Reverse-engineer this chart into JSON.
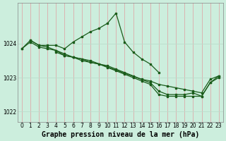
{
  "title": "Graphe pression niveau de la mer (hPa)",
  "background_color": "#cceedd",
  "line_color": "#1a5c1a",
  "marker_color": "#1a5c1a",
  "xlim": [
    -0.5,
    23.5
  ],
  "ylim": [
    1021.7,
    1025.2
  ],
  "yticks": [
    1022,
    1023,
    1024
  ],
  "xticks": [
    0,
    1,
    2,
    3,
    4,
    5,
    6,
    7,
    8,
    9,
    10,
    11,
    12,
    13,
    14,
    15,
    16,
    17,
    18,
    19,
    20,
    21,
    22,
    23
  ],
  "series": [
    {
      "x": [
        0,
        1,
        2,
        3,
        4,
        5,
        6,
        7,
        8,
        9,
        10,
        11,
        12,
        13,
        14,
        15,
        16
      ],
      "y": [
        1023.85,
        1024.1,
        1023.95,
        1023.95,
        1023.95,
        1023.85,
        1024.05,
        1024.2,
        1024.35,
        1024.45,
        1024.6,
        1024.9,
        1024.05,
        1023.75,
        1023.55,
        1023.4,
        1023.15
      ]
    },
    {
      "x": [
        1,
        2,
        3,
        4,
        5,
        6,
        7,
        8,
        9,
        10,
        11,
        12,
        13,
        14,
        15,
        16,
        17,
        18,
        19,
        20,
        21,
        22,
        23
      ],
      "y": [
        1024.1,
        1023.95,
        1023.9,
        1023.8,
        1023.7,
        1023.6,
        1023.55,
        1023.45,
        1023.4,
        1023.35,
        1023.25,
        1023.15,
        1023.05,
        1022.95,
        1022.9,
        1022.8,
        1022.75,
        1022.7,
        1022.65,
        1022.6,
        1022.55,
        1022.95,
        1023.05
      ]
    },
    {
      "x": [
        0,
        1,
        2,
        3,
        4,
        5,
        6,
        7,
        8,
        15,
        16,
        17,
        18,
        19,
        20,
        21,
        22,
        23
      ],
      "y": [
        1023.85,
        1024.05,
        1023.9,
        1023.85,
        1023.8,
        1023.65,
        1023.6,
        1023.55,
        1023.5,
        1022.85,
        1022.6,
        1022.5,
        1022.5,
        1022.5,
        1022.55,
        1022.45,
        1022.85,
        1023.05
      ]
    },
    {
      "x": [
        4,
        5,
        6,
        7,
        8,
        9,
        10,
        11,
        12,
        13,
        14,
        15,
        16,
        17,
        18,
        19,
        20,
        21,
        22,
        23
      ],
      "y": [
        1023.75,
        1023.65,
        1023.6,
        1023.5,
        1023.45,
        1023.4,
        1023.3,
        1023.2,
        1023.1,
        1023.0,
        1022.9,
        1022.8,
        1022.5,
        1022.45,
        1022.45,
        1022.45,
        1022.45,
        1022.45,
        1022.85,
        1023.0
      ]
    }
  ],
  "tick_fontsize": 5.5,
  "title_fontsize": 7,
  "grid_color_v": "#ddaaaa",
  "grid_color_h": "#bbddcc"
}
